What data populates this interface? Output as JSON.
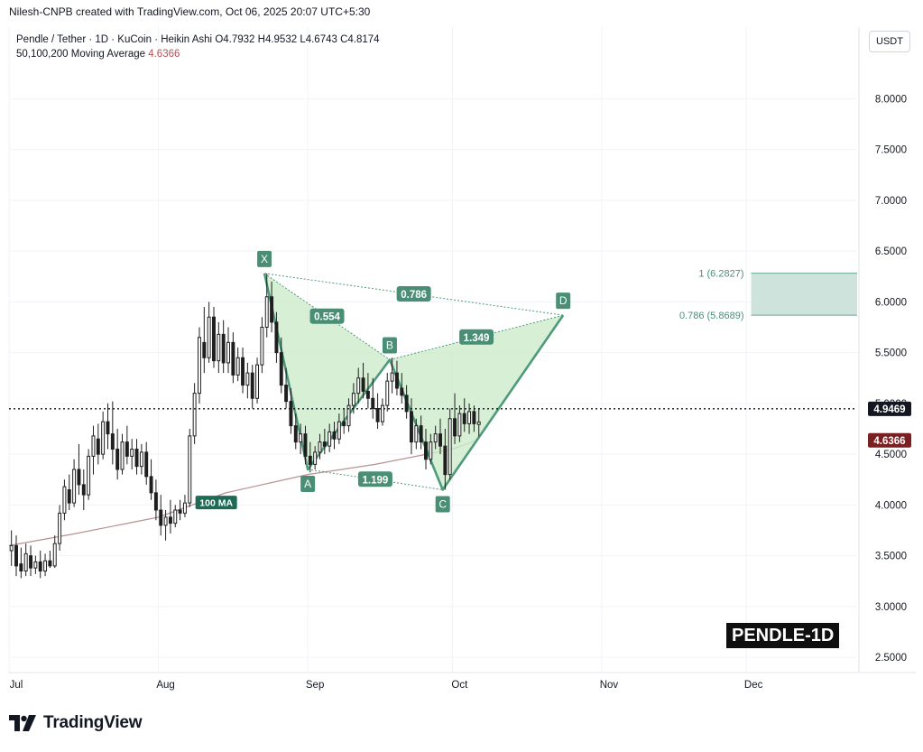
{
  "header": {
    "credit": "Nilesh-CNPB created with TradingView.com, Oct 06, 2025 20:07 UTC+5:30",
    "symbol_line": "Pendle / Tether · 1D · KuCoin · Heikin Ashi",
    "ohlc": "O4.7932 H4.9532 L4.6743 C4.8174",
    "ma_label": "50,100,200 Moving Average",
    "ma_value": "4.6366",
    "currency": "USDT"
  },
  "branding": {
    "name": "TradingView",
    "symbol_badge": "PENDLE-1D"
  },
  "colors": {
    "up": "#1f1f1f",
    "pattern_stroke": "#4f9a7a",
    "pattern_fill": "#cdebc9",
    "label_bg": "#4a8f75",
    "ma_line": "#b79092",
    "ma_badge": "#7a1f22",
    "target_zone": "#cfe3dd",
    "price_badge": "#131722"
  },
  "chart_data": {
    "type": "candlestick",
    "y_axis": {
      "range": [
        2.35,
        8.35
      ],
      "ticks": [
        "8.0000",
        "7.5000",
        "7.0000",
        "6.5000",
        "6.0000",
        "5.5000",
        "5.0000",
        "4.5000",
        "4.0000",
        "3.5000",
        "3.0000",
        "2.5000"
      ],
      "tick_values": [
        8.0,
        7.5,
        7.0,
        6.5,
        6.0,
        5.5,
        5.0,
        4.5,
        4.0,
        3.5,
        3.0,
        2.5
      ]
    },
    "x_axis": {
      "range": [
        "2025-07-01",
        "2025-12-24"
      ],
      "ticks": [
        {
          "label": "Jul",
          "date": "2025-07-01"
        },
        {
          "label": "Aug",
          "date": "2025-08-01"
        },
        {
          "label": "Sep",
          "date": "2025-09-01"
        },
        {
          "label": "Oct",
          "date": "2025-10-01"
        },
        {
          "label": "Nov",
          "date": "2025-11-01"
        },
        {
          "label": "Dec",
          "date": "2025-12-01"
        }
      ]
    },
    "grid": true,
    "last_price": {
      "value": 4.9469,
      "label": "4.9469"
    },
    "ma_badge": {
      "value": 4.6366,
      "label": "4.6366"
    },
    "ma_line_label": "100 MA",
    "candles": [
      {
        "date": "2025-07-01",
        "o": 3.55,
        "h": 3.75,
        "l": 3.4,
        "c": 3.6
      },
      {
        "date": "2025-07-02",
        "o": 3.6,
        "h": 3.7,
        "l": 3.3,
        "c": 3.4
      },
      {
        "date": "2025-07-03",
        "o": 3.42,
        "h": 3.58,
        "l": 3.28,
        "c": 3.35
      },
      {
        "date": "2025-07-04",
        "o": 3.35,
        "h": 3.62,
        "l": 3.3,
        "c": 3.52
      },
      {
        "date": "2025-07-05",
        "o": 3.5,
        "h": 3.6,
        "l": 3.3,
        "c": 3.38
      },
      {
        "date": "2025-07-06",
        "o": 3.38,
        "h": 3.5,
        "l": 3.32,
        "c": 3.44
      },
      {
        "date": "2025-07-07",
        "o": 3.44,
        "h": 3.55,
        "l": 3.28,
        "c": 3.35
      },
      {
        "date": "2025-07-08",
        "o": 3.35,
        "h": 3.52,
        "l": 3.3,
        "c": 3.45
      },
      {
        "date": "2025-07-09",
        "o": 3.45,
        "h": 3.55,
        "l": 3.38,
        "c": 3.4
      },
      {
        "date": "2025-07-10",
        "o": 3.4,
        "h": 3.7,
        "l": 3.38,
        "c": 3.62
      },
      {
        "date": "2025-07-11",
        "o": 3.62,
        "h": 4.0,
        "l": 3.55,
        "c": 3.92
      },
      {
        "date": "2025-07-12",
        "o": 3.92,
        "h": 4.25,
        "l": 3.85,
        "c": 4.18
      },
      {
        "date": "2025-07-13",
        "o": 4.15,
        "h": 4.3,
        "l": 3.95,
        "c": 4.02
      },
      {
        "date": "2025-07-14",
        "o": 4.02,
        "h": 4.45,
        "l": 3.98,
        "c": 4.35
      },
      {
        "date": "2025-07-15",
        "o": 4.35,
        "h": 4.6,
        "l": 4.1,
        "c": 4.2
      },
      {
        "date": "2025-07-16",
        "o": 4.2,
        "h": 4.35,
        "l": 3.95,
        "c": 4.1
      },
      {
        "date": "2025-07-17",
        "o": 4.1,
        "h": 4.55,
        "l": 4.05,
        "c": 4.48
      },
      {
        "date": "2025-07-18",
        "o": 4.48,
        "h": 4.78,
        "l": 4.3,
        "c": 4.68
      },
      {
        "date": "2025-07-19",
        "o": 4.65,
        "h": 4.8,
        "l": 4.4,
        "c": 4.5
      },
      {
        "date": "2025-07-20",
        "o": 4.5,
        "h": 4.92,
        "l": 4.45,
        "c": 4.82
      },
      {
        "date": "2025-07-21",
        "o": 4.82,
        "h": 5.0,
        "l": 4.55,
        "c": 4.7
      },
      {
        "date": "2025-07-22",
        "o": 4.7,
        "h": 5.02,
        "l": 4.4,
        "c": 4.55
      },
      {
        "date": "2025-07-23",
        "o": 4.55,
        "h": 4.75,
        "l": 4.25,
        "c": 4.35
      },
      {
        "date": "2025-07-24",
        "o": 4.35,
        "h": 4.7,
        "l": 4.3,
        "c": 4.62
      },
      {
        "date": "2025-07-25",
        "o": 4.62,
        "h": 4.78,
        "l": 4.4,
        "c": 4.48
      },
      {
        "date": "2025-07-26",
        "o": 4.48,
        "h": 4.65,
        "l": 4.35,
        "c": 4.55
      },
      {
        "date": "2025-07-27",
        "o": 4.55,
        "h": 4.65,
        "l": 4.3,
        "c": 4.38
      },
      {
        "date": "2025-07-28",
        "o": 4.38,
        "h": 4.6,
        "l": 4.3,
        "c": 4.52
      },
      {
        "date": "2025-07-29",
        "o": 4.52,
        "h": 4.62,
        "l": 4.2,
        "c": 4.28
      },
      {
        "date": "2025-07-30",
        "o": 4.28,
        "h": 4.45,
        "l": 4.05,
        "c": 4.12
      },
      {
        "date": "2025-07-31",
        "o": 4.12,
        "h": 4.25,
        "l": 3.85,
        "c": 3.95
      },
      {
        "date": "2025-08-01",
        "o": 3.95,
        "h": 4.1,
        "l": 3.7,
        "c": 3.8
      },
      {
        "date": "2025-08-02",
        "o": 3.8,
        "h": 3.95,
        "l": 3.65,
        "c": 3.88
      },
      {
        "date": "2025-08-03",
        "o": 3.88,
        "h": 4.05,
        "l": 3.72,
        "c": 3.82
      },
      {
        "date": "2025-08-04",
        "o": 3.82,
        "h": 4.0,
        "l": 3.78,
        "c": 3.95
      },
      {
        "date": "2025-08-05",
        "o": 3.95,
        "h": 4.05,
        "l": 3.85,
        "c": 3.92
      },
      {
        "date": "2025-08-06",
        "o": 3.92,
        "h": 4.1,
        "l": 3.88,
        "c": 4.02
      },
      {
        "date": "2025-08-07",
        "o": 4.02,
        "h": 4.75,
        "l": 3.98,
        "c": 4.68
      },
      {
        "date": "2025-08-08",
        "o": 4.68,
        "h": 5.2,
        "l": 4.6,
        "c": 5.1
      },
      {
        "date": "2025-08-09",
        "o": 5.1,
        "h": 5.75,
        "l": 5.0,
        "c": 5.65
      },
      {
        "date": "2025-08-10",
        "o": 5.6,
        "h": 5.95,
        "l": 5.3,
        "c": 5.45
      },
      {
        "date": "2025-08-11",
        "o": 5.45,
        "h": 6.0,
        "l": 5.4,
        "c": 5.85
      },
      {
        "date": "2025-08-12",
        "o": 5.85,
        "h": 5.95,
        "l": 5.35,
        "c": 5.42
      },
      {
        "date": "2025-08-13",
        "o": 5.42,
        "h": 5.8,
        "l": 5.3,
        "c": 5.68
      },
      {
        "date": "2025-08-14",
        "o": 5.68,
        "h": 5.82,
        "l": 5.3,
        "c": 5.4
      },
      {
        "date": "2025-08-15",
        "o": 5.4,
        "h": 5.75,
        "l": 5.3,
        "c": 5.6
      },
      {
        "date": "2025-08-16",
        "o": 5.6,
        "h": 5.7,
        "l": 5.2,
        "c": 5.28
      },
      {
        "date": "2025-08-17",
        "o": 5.28,
        "h": 5.55,
        "l": 5.22,
        "c": 5.45
      },
      {
        "date": "2025-08-18",
        "o": 5.45,
        "h": 5.55,
        "l": 5.1,
        "c": 5.18
      },
      {
        "date": "2025-08-19",
        "o": 5.18,
        "h": 5.4,
        "l": 5.05,
        "c": 5.3
      },
      {
        "date": "2025-08-20",
        "o": 5.3,
        "h": 5.38,
        "l": 4.95,
        "c": 5.05
      },
      {
        "date": "2025-08-21",
        "o": 5.05,
        "h": 5.45,
        "l": 5.0,
        "c": 5.38
      },
      {
        "date": "2025-08-22",
        "o": 5.38,
        "h": 5.85,
        "l": 5.3,
        "c": 5.75
      },
      {
        "date": "2025-08-23",
        "o": 5.75,
        "h": 6.28,
        "l": 5.65,
        "c": 6.05
      },
      {
        "date": "2025-08-24",
        "o": 6.05,
        "h": 6.2,
        "l": 5.7,
        "c": 5.8
      },
      {
        "date": "2025-08-25",
        "o": 5.8,
        "h": 5.9,
        "l": 5.4,
        "c": 5.5
      },
      {
        "date": "2025-08-26",
        "o": 5.5,
        "h": 5.65,
        "l": 5.1,
        "c": 5.18
      },
      {
        "date": "2025-08-27",
        "o": 5.18,
        "h": 5.35,
        "l": 4.95,
        "c": 5.02
      },
      {
        "date": "2025-08-28",
        "o": 5.02,
        "h": 5.15,
        "l": 4.7,
        "c": 4.78
      },
      {
        "date": "2025-08-29",
        "o": 4.78,
        "h": 4.9,
        "l": 4.55,
        "c": 4.62
      },
      {
        "date": "2025-08-30",
        "o": 4.62,
        "h": 4.8,
        "l": 4.5,
        "c": 4.7
      },
      {
        "date": "2025-08-31",
        "o": 4.7,
        "h": 4.78,
        "l": 4.4,
        "c": 4.48
      },
      {
        "date": "2025-09-01",
        "o": 4.48,
        "h": 4.62,
        "l": 4.32,
        "c": 4.4
      },
      {
        "date": "2025-09-02",
        "o": 4.4,
        "h": 4.58,
        "l": 4.35,
        "c": 4.52
      },
      {
        "date": "2025-09-03",
        "o": 4.52,
        "h": 4.7,
        "l": 4.45,
        "c": 4.62
      },
      {
        "date": "2025-09-04",
        "o": 4.62,
        "h": 4.75,
        "l": 4.5,
        "c": 4.58
      },
      {
        "date": "2025-09-05",
        "o": 4.58,
        "h": 4.8,
        "l": 4.52,
        "c": 4.72
      },
      {
        "date": "2025-09-06",
        "o": 4.72,
        "h": 4.82,
        "l": 4.55,
        "c": 4.65
      },
      {
        "date": "2025-09-07",
        "o": 4.65,
        "h": 4.9,
        "l": 4.6,
        "c": 4.82
      },
      {
        "date": "2025-09-08",
        "o": 4.82,
        "h": 4.95,
        "l": 4.7,
        "c": 4.78
      },
      {
        "date": "2025-09-09",
        "o": 4.78,
        "h": 5.05,
        "l": 4.72,
        "c": 4.98
      },
      {
        "date": "2025-09-10",
        "o": 4.98,
        "h": 5.2,
        "l": 4.9,
        "c": 5.1
      },
      {
        "date": "2025-09-11",
        "o": 5.1,
        "h": 5.35,
        "l": 5.0,
        "c": 5.25
      },
      {
        "date": "2025-09-12",
        "o": 5.25,
        "h": 5.4,
        "l": 5.05,
        "c": 5.12
      },
      {
        "date": "2025-09-13",
        "o": 5.12,
        "h": 5.3,
        "l": 4.95,
        "c": 5.05
      },
      {
        "date": "2025-09-14",
        "o": 5.05,
        "h": 5.25,
        "l": 4.85,
        "c": 4.95
      },
      {
        "date": "2025-09-15",
        "o": 4.95,
        "h": 5.1,
        "l": 4.75,
        "c": 4.82
      },
      {
        "date": "2025-09-16",
        "o": 4.82,
        "h": 5.05,
        "l": 4.78,
        "c": 4.98
      },
      {
        "date": "2025-09-17",
        "o": 4.98,
        "h": 5.3,
        "l": 4.92,
        "c": 5.22
      },
      {
        "date": "2025-09-18",
        "o": 5.22,
        "h": 5.45,
        "l": 5.1,
        "c": 5.3
      },
      {
        "date": "2025-09-19",
        "o": 5.3,
        "h": 5.42,
        "l": 5.08,
        "c": 5.15
      },
      {
        "date": "2025-09-20",
        "o": 5.15,
        "h": 5.3,
        "l": 5.0,
        "c": 5.08
      },
      {
        "date": "2025-09-21",
        "o": 5.08,
        "h": 5.18,
        "l": 4.85,
        "c": 4.92
      },
      {
        "date": "2025-09-22",
        "o": 4.92,
        "h": 5.05,
        "l": 4.5,
        "c": 4.62
      },
      {
        "date": "2025-09-23",
        "o": 4.62,
        "h": 4.85,
        "l": 4.55,
        "c": 4.78
      },
      {
        "date": "2025-09-24",
        "o": 4.78,
        "h": 4.88,
        "l": 4.55,
        "c": 4.62
      },
      {
        "date": "2025-09-25",
        "o": 4.62,
        "h": 4.75,
        "l": 4.35,
        "c": 4.45
      },
      {
        "date": "2025-09-26",
        "o": 4.45,
        "h": 4.7,
        "l": 4.4,
        "c": 4.62
      },
      {
        "date": "2025-09-27",
        "o": 4.62,
        "h": 4.78,
        "l": 4.55,
        "c": 4.7
      },
      {
        "date": "2025-09-28",
        "o": 4.7,
        "h": 4.85,
        "l": 4.5,
        "c": 4.58
      },
      {
        "date": "2025-09-29",
        "o": 4.58,
        "h": 4.75,
        "l": 4.15,
        "c": 4.3
      },
      {
        "date": "2025-09-30",
        "o": 4.3,
        "h": 4.95,
        "l": 4.25,
        "c": 4.85
      },
      {
        "date": "2025-10-01",
        "o": 4.85,
        "h": 5.1,
        "l": 4.6,
        "c": 4.68
      },
      {
        "date": "2025-10-02",
        "o": 4.68,
        "h": 4.98,
        "l": 4.62,
        "c": 4.9
      },
      {
        "date": "2025-10-03",
        "o": 4.9,
        "h": 5.05,
        "l": 4.72,
        "c": 4.8
      },
      {
        "date": "2025-10-04",
        "o": 4.8,
        "h": 5.0,
        "l": 4.7,
        "c": 4.92
      },
      {
        "date": "2025-10-05",
        "o": 4.92,
        "h": 4.98,
        "l": 4.72,
        "c": 4.8
      },
      {
        "date": "2025-10-06",
        "o": 4.7932,
        "h": 4.9532,
        "l": 4.6743,
        "c": 4.8174
      }
    ],
    "moving_average": {
      "name": "100 MA",
      "points": [
        {
          "date": "2025-07-01",
          "v": 3.6
        },
        {
          "date": "2025-07-15",
          "v": 3.72
        },
        {
          "date": "2025-08-01",
          "v": 3.88
        },
        {
          "date": "2025-08-15",
          "v": 4.12
        },
        {
          "date": "2025-09-01",
          "v": 4.3
        },
        {
          "date": "2025-09-15",
          "v": 4.4
        },
        {
          "date": "2025-10-01",
          "v": 4.55
        },
        {
          "date": "2025-10-06",
          "v": 4.6366
        }
      ]
    },
    "harmonic_pattern": {
      "points": [
        {
          "label": "X",
          "date": "2025-08-23",
          "price": 6.28
        },
        {
          "label": "A",
          "date": "2025-09-01",
          "price": 4.35
        },
        {
          "label": "B",
          "date": "2025-09-18",
          "price": 5.43
        },
        {
          "label": "C",
          "date": "2025-09-29",
          "price": 4.15
        },
        {
          "label": "D",
          "date": "2025-10-24",
          "price": 5.8689
        }
      ],
      "ratios": [
        {
          "label": "0.554",
          "from": "X",
          "to": "B"
        },
        {
          "label": "1.199",
          "from": "A",
          "to": "C"
        },
        {
          "label": "1.349",
          "from": "B",
          "to": "D"
        },
        {
          "label": "0.786",
          "from": "X",
          "to": "D"
        }
      ]
    },
    "target_zone": {
      "from_date": "2025-12-02",
      "to_date": "2025-12-24",
      "levels": [
        {
          "label": "1 (6.2827)",
          "value": 6.2827
        },
        {
          "label": "0.786 (5.8689)",
          "value": 5.8689
        }
      ]
    }
  }
}
